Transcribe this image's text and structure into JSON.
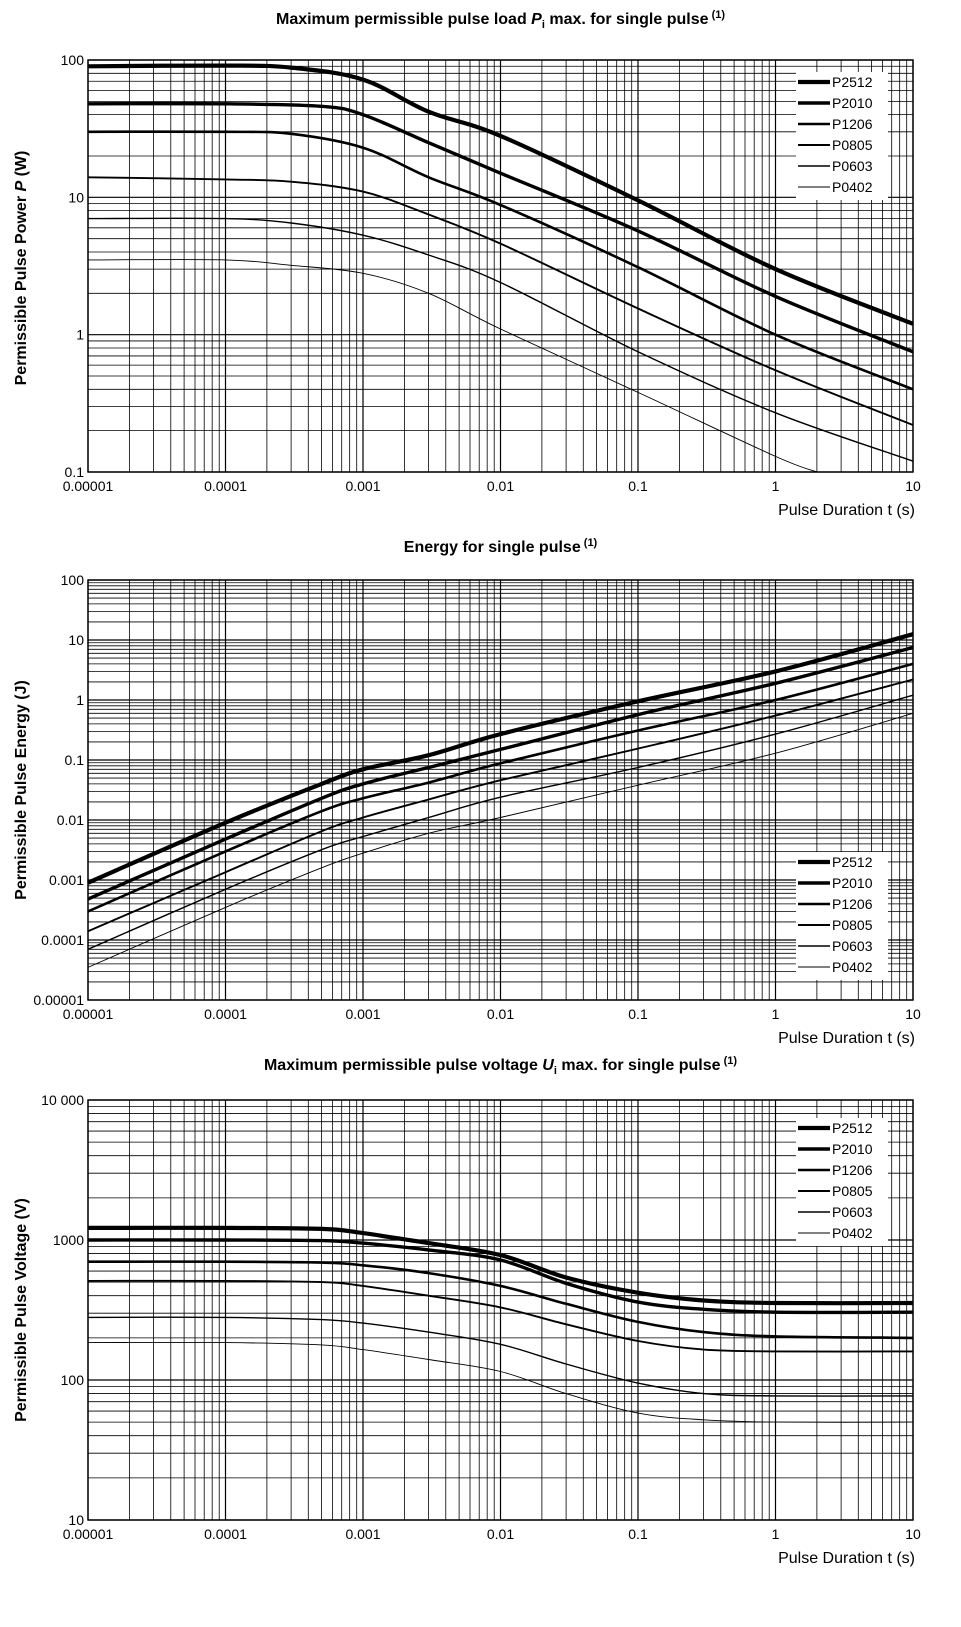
{
  "chart_data": [
    {
      "type": "line",
      "title_pre": "Maximum permissible pulse load ",
      "title_sym": "P",
      "title_sub": "i",
      "title_post": " max. for single pulse",
      "title_note": "(1)",
      "ylabel_pre": "Permissible Pulse Power ",
      "ylabel_sym": "P",
      "ylabel_post": " (W)",
      "xlabel": "Pulse Duration t (s)",
      "xscale": "log",
      "yscale": "log",
      "xlim": [
        1e-05,
        10
      ],
      "ylim": [
        0.1,
        100
      ],
      "grid": true,
      "legend_position": "top-right",
      "xticks": [
        {
          "v": 1e-05,
          "label": "0.00001"
        },
        {
          "v": 0.0001,
          "label": "0.0001"
        },
        {
          "v": 0.001,
          "label": "0.001"
        },
        {
          "v": 0.01,
          "label": "0.01"
        },
        {
          "v": 0.1,
          "label": "0.1"
        },
        {
          "v": 1,
          "label": "1"
        },
        {
          "v": 10,
          "label": "10"
        }
      ],
      "yticks": [
        {
          "v": 0.1,
          "label": "0.1"
        },
        {
          "v": 1,
          "label": "1"
        },
        {
          "v": 10,
          "label": "10"
        },
        {
          "v": 100,
          "label": "100"
        }
      ],
      "series": [
        {
          "name": "P2512",
          "points": [
            [
              1e-05,
              90
            ],
            [
              0.0001,
              91
            ],
            [
              0.0003,
              88
            ],
            [
              0.001,
              72
            ],
            [
              0.003,
              42
            ],
            [
              0.01,
              28
            ],
            [
              0.1,
              9.5
            ],
            [
              1,
              3.0
            ],
            [
              10,
              1.2
            ]
          ]
        },
        {
          "name": "P2010",
          "points": [
            [
              1e-05,
              48
            ],
            [
              0.0001,
              48
            ],
            [
              0.0005,
              46
            ],
            [
              0.001,
              40
            ],
            [
              0.003,
              25
            ],
            [
              0.01,
              15
            ],
            [
              0.1,
              5.7
            ],
            [
              1,
              1.9
            ],
            [
              10,
              0.75
            ]
          ]
        },
        {
          "name": "P1206",
          "points": [
            [
              1e-05,
              30
            ],
            [
              0.0001,
              30
            ],
            [
              0.0003,
              29
            ],
            [
              0.001,
              23
            ],
            [
              0.003,
              14
            ],
            [
              0.01,
              8.8
            ],
            [
              0.1,
              3.1
            ],
            [
              1,
              1.0
            ],
            [
              10,
              0.4
            ]
          ]
        },
        {
          "name": "P0805",
          "points": [
            [
              1e-05,
              14
            ],
            [
              0.0001,
              13.5
            ],
            [
              0.0003,
              13
            ],
            [
              0.001,
              11
            ],
            [
              0.003,
              7.5
            ],
            [
              0.01,
              4.6
            ],
            [
              0.1,
              1.55
            ],
            [
              1,
              0.55
            ],
            [
              10,
              0.22
            ]
          ]
        },
        {
          "name": "P0603",
          "points": [
            [
              1e-05,
              7.0
            ],
            [
              0.0001,
              7.0
            ],
            [
              0.0003,
              6.5
            ],
            [
              0.001,
              5.3
            ],
            [
              0.003,
              3.8
            ],
            [
              0.01,
              2.4
            ],
            [
              0.1,
              0.75
            ],
            [
              1,
              0.27
            ],
            [
              10,
              0.12
            ]
          ]
        },
        {
          "name": "P0402",
          "points": [
            [
              1e-05,
              3.5
            ],
            [
              0.0001,
              3.5
            ],
            [
              0.0003,
              3.2
            ],
            [
              0.001,
              2.8
            ],
            [
              0.003,
              2.0
            ],
            [
              0.01,
              1.1
            ],
            [
              0.1,
              0.38
            ],
            [
              1,
              0.13
            ],
            [
              2,
              0.1
            ]
          ]
        }
      ]
    },
    {
      "type": "line",
      "title_pre": "Energy for single pulse",
      "title_note": "(1)",
      "ylabel_pre": "Permissible Pulse Energy (J)",
      "xlabel": "Pulse Duration t (s)",
      "xscale": "log",
      "yscale": "log",
      "xlim": [
        1e-05,
        10
      ],
      "ylim": [
        1e-05,
        100
      ],
      "grid": true,
      "legend_position": "bottom-right",
      "xticks": [
        {
          "v": 1e-05,
          "label": "0.00001"
        },
        {
          "v": 0.0001,
          "label": "0.0001"
        },
        {
          "v": 0.001,
          "label": "0.001"
        },
        {
          "v": 0.01,
          "label": "0.01"
        },
        {
          "v": 0.1,
          "label": "0.1"
        },
        {
          "v": 1,
          "label": "1"
        },
        {
          "v": 10,
          "label": "10"
        }
      ],
      "yticks": [
        {
          "v": 1e-05,
          "label": "0.00001"
        },
        {
          "v": 0.0001,
          "label": "0.0001"
        },
        {
          "v": 0.001,
          "label": "0.001"
        },
        {
          "v": 0.01,
          "label": "0.01"
        },
        {
          "v": 0.1,
          "label": "0.1"
        },
        {
          "v": 1,
          "label": "1"
        },
        {
          "v": 10,
          "label": "10"
        },
        {
          "v": 100,
          "label": "100"
        }
      ],
      "series": [
        {
          "name": "P2512",
          "points": [
            [
              1e-05,
              0.0009
            ],
            [
              0.0001,
              0.009
            ],
            [
              0.0005,
              0.04
            ],
            [
              0.001,
              0.07
            ],
            [
              0.003,
              0.12
            ],
            [
              0.01,
              0.27
            ],
            [
              0.1,
              0.95
            ],
            [
              1,
              3.0
            ],
            [
              10,
              12.5
            ]
          ]
        },
        {
          "name": "P2010",
          "points": [
            [
              1e-05,
              0.00048
            ],
            [
              0.0001,
              0.0048
            ],
            [
              0.0005,
              0.023
            ],
            [
              0.001,
              0.04
            ],
            [
              0.003,
              0.075
            ],
            [
              0.01,
              0.15
            ],
            [
              0.1,
              0.57
            ],
            [
              1,
              1.9
            ],
            [
              10,
              7.5
            ]
          ]
        },
        {
          "name": "P1206",
          "points": [
            [
              1e-05,
              0.0003
            ],
            [
              0.0001,
              0.003
            ],
            [
              0.0005,
              0.014
            ],
            [
              0.001,
              0.023
            ],
            [
              0.003,
              0.042
            ],
            [
              0.01,
              0.088
            ],
            [
              0.1,
              0.31
            ],
            [
              1,
              1.0
            ],
            [
              10,
              4.0
            ]
          ]
        },
        {
          "name": "P0805",
          "points": [
            [
              1e-05,
              0.00014
            ],
            [
              0.0001,
              0.00135
            ],
            [
              0.0005,
              0.0065
            ],
            [
              0.001,
              0.011
            ],
            [
              0.003,
              0.022
            ],
            [
              0.01,
              0.046
            ],
            [
              0.1,
              0.155
            ],
            [
              1,
              0.55
            ],
            [
              10,
              2.2
            ]
          ]
        },
        {
          "name": "P0603",
          "points": [
            [
              1e-05,
              7e-05
            ],
            [
              0.0001,
              0.0007
            ],
            [
              0.0005,
              0.0032
            ],
            [
              0.001,
              0.0053
            ],
            [
              0.003,
              0.011
            ],
            [
              0.01,
              0.024
            ],
            [
              0.1,
              0.075
            ],
            [
              1,
              0.27
            ],
            [
              10,
              1.2
            ]
          ]
        },
        {
          "name": "P0402",
          "points": [
            [
              1e-05,
              3.5e-05
            ],
            [
              0.0001,
              0.00035
            ],
            [
              0.0005,
              0.0016
            ],
            [
              0.001,
              0.0028
            ],
            [
              0.003,
              0.006
            ],
            [
              0.01,
              0.011
            ],
            [
              0.1,
              0.038
            ],
            [
              1,
              0.13
            ],
            [
              10,
              0.6
            ]
          ]
        }
      ]
    },
    {
      "type": "line",
      "title_pre": "Maximum permissible pulse voltage ",
      "title_sym": "U",
      "title_sub": "i",
      "title_post": " max. for single pulse",
      "title_note": "(1)",
      "ylabel_pre": "Permissible Pulse Voltage (V)",
      "xlabel": "Pulse Duration t (s)",
      "xscale": "log",
      "yscale": "log",
      "xlim": [
        1e-05,
        10
      ],
      "ylim": [
        10,
        10000
      ],
      "grid": true,
      "legend_position": "top-right",
      "xticks": [
        {
          "v": 1e-05,
          "label": "0.00001"
        },
        {
          "v": 0.0001,
          "label": "0.0001"
        },
        {
          "v": 0.001,
          "label": "0.001"
        },
        {
          "v": 0.01,
          "label": "0.01"
        },
        {
          "v": 0.1,
          "label": "0.1"
        },
        {
          "v": 1,
          "label": "1"
        },
        {
          "v": 10,
          "label": "10"
        }
      ],
      "yticks": [
        {
          "v": 10,
          "label": "10"
        },
        {
          "v": 100,
          "label": "100"
        },
        {
          "v": 1000,
          "label": "1000"
        },
        {
          "v": 10000,
          "label": "10 000"
        }
      ],
      "series": [
        {
          "name": "P2512",
          "points": [
            [
              1e-05,
              1220
            ],
            [
              0.0001,
              1220
            ],
            [
              0.0005,
              1200
            ],
            [
              0.001,
              1120
            ],
            [
              0.003,
              950
            ],
            [
              0.01,
              780
            ],
            [
              0.03,
              540
            ],
            [
              0.1,
              420
            ],
            [
              0.3,
              370
            ],
            [
              1,
              355
            ],
            [
              10,
              355
            ]
          ]
        },
        {
          "name": "P2010",
          "points": [
            [
              1e-05,
              1000
            ],
            [
              0.0001,
              1000
            ],
            [
              0.0005,
              990
            ],
            [
              0.001,
              950
            ],
            [
              0.003,
              850
            ],
            [
              0.01,
              720
            ],
            [
              0.03,
              490
            ],
            [
              0.1,
              360
            ],
            [
              0.3,
              320
            ],
            [
              1,
              305
            ],
            [
              10,
              305
            ]
          ]
        },
        {
          "name": "P1206",
          "points": [
            [
              1e-05,
              700
            ],
            [
              0.0001,
              700
            ],
            [
              0.0005,
              690
            ],
            [
              0.001,
              660
            ],
            [
              0.003,
              580
            ],
            [
              0.01,
              470
            ],
            [
              0.03,
              350
            ],
            [
              0.1,
              260
            ],
            [
              0.3,
              220
            ],
            [
              1,
              205
            ],
            [
              10,
              200
            ]
          ]
        },
        {
          "name": "P0805",
          "points": [
            [
              1e-05,
              510
            ],
            [
              0.0001,
              510
            ],
            [
              0.0005,
              500
            ],
            [
              0.001,
              470
            ],
            [
              0.003,
              400
            ],
            [
              0.01,
              330
            ],
            [
              0.03,
              250
            ],
            [
              0.1,
              190
            ],
            [
              0.3,
              165
            ],
            [
              1,
              160
            ],
            [
              10,
              160
            ]
          ]
        },
        {
          "name": "P0603",
          "points": [
            [
              1e-05,
              280
            ],
            [
              0.0001,
              280
            ],
            [
              0.0005,
              270
            ],
            [
              0.001,
              255
            ],
            [
              0.003,
              220
            ],
            [
              0.01,
              180
            ],
            [
              0.03,
              130
            ],
            [
              0.1,
              95
            ],
            [
              0.3,
              80
            ],
            [
              1,
              77
            ],
            [
              10,
              77
            ]
          ]
        },
        {
          "name": "P0402",
          "points": [
            [
              1e-05,
              185
            ],
            [
              0.0001,
              185
            ],
            [
              0.0005,
              178
            ],
            [
              0.001,
              165
            ],
            [
              0.003,
              140
            ],
            [
              0.01,
              115
            ],
            [
              0.03,
              80
            ],
            [
              0.1,
              58
            ],
            [
              0.3,
              52
            ],
            [
              1,
              50
            ],
            [
              10,
              50
            ]
          ]
        }
      ]
    }
  ]
}
